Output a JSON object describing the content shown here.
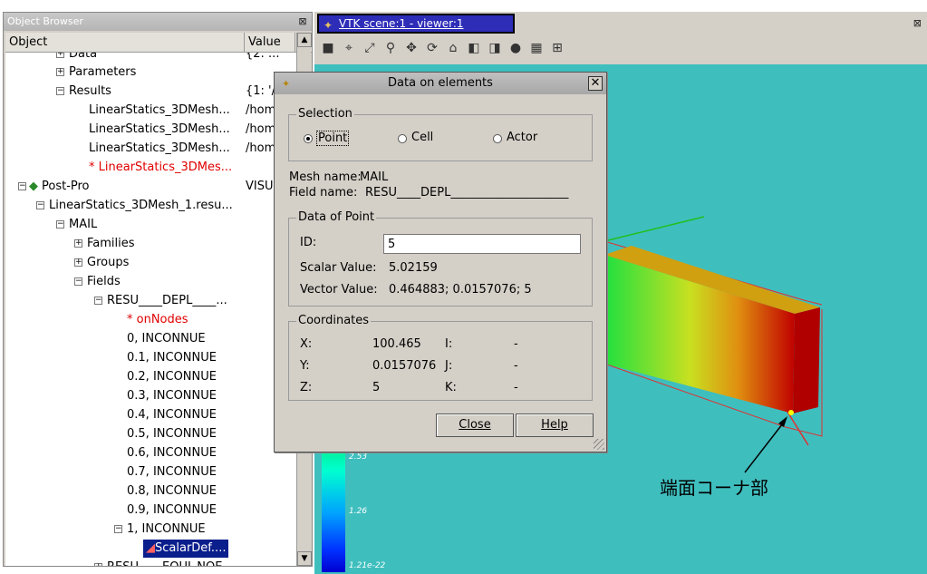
{
  "object_browser": {
    "title": "Object Browser",
    "col_object": "Object",
    "col_value": "Value",
    "rows": [
      {
        "label": "Data",
        "value": "{2: ..."
      },
      {
        "label": "Parameters",
        "value": ""
      },
      {
        "label": "Results",
        "value": "{1: '/"
      },
      {
        "label": "LinearStatics_3DMesh...",
        "value": "/hom."
      },
      {
        "label": "LinearStatics_3DMesh...",
        "value": "/hom."
      },
      {
        "label": "LinearStatics_3DMesh...",
        "value": "/hom."
      },
      {
        "label": "* LinearStatics_3DMes...",
        "value": ""
      },
      {
        "label": "Post-Pro",
        "value": "VISU"
      },
      {
        "label": "LinearStatics_3DMesh_1.resu...",
        "value": ""
      },
      {
        "label": "MAIL",
        "value": ""
      },
      {
        "label": "Families",
        "value": ""
      },
      {
        "label": "Groups",
        "value": ""
      },
      {
        "label": "Fields",
        "value": ""
      },
      {
        "label": "RESU____DEPL____...",
        "value": ""
      },
      {
        "label": "* onNodes",
        "value": ""
      },
      {
        "label": "0, INCONNUE",
        "value": ""
      },
      {
        "label": "0.1, INCONNUE",
        "value": ""
      },
      {
        "label": "0.2, INCONNUE",
        "value": ""
      },
      {
        "label": "0.3, INCONNUE",
        "value": ""
      },
      {
        "label": "0.4, INCONNUE",
        "value": ""
      },
      {
        "label": "0.5, INCONNUE",
        "value": ""
      },
      {
        "label": "0.6, INCONNUE",
        "value": ""
      },
      {
        "label": "0.7, INCONNUE",
        "value": ""
      },
      {
        "label": "0.8, INCONNUE",
        "value": ""
      },
      {
        "label": "0.9, INCONNUE",
        "value": ""
      },
      {
        "label": "1, INCONNUE",
        "value": ""
      },
      {
        "label": "ScalarDef....",
        "value": ""
      },
      {
        "label": "RESU____EQUI_NOE...",
        "value": ""
      }
    ]
  },
  "viewer": {
    "tab_title": "VTK scene:1 - viewer:1",
    "close_glyph": "⊠",
    "scalar_labels": [
      "2.53",
      "1.26",
      "1.21e-22"
    ]
  },
  "dialog": {
    "title": "Data on elements",
    "selection_title": "Selection",
    "radio_point": "Point",
    "radio_cell": "Cell",
    "radio_actor": "Actor",
    "mesh_name_label": "Mesh name:",
    "mesh_name": "MAIL",
    "field_name_label": "Field name:",
    "field_name": "RESU____DEPL____________________",
    "data_title": "Data of Point",
    "id_label": "ID:",
    "id_value": "5",
    "scalar_label": "Scalar Value:",
    "scalar_value": "5.02159",
    "vector_label": "Vector Value:",
    "vector_value": "0.464883; 0.0157076; 5",
    "coords_title": "Coordinates",
    "x_label": "X:",
    "x_value": "100.465",
    "y_label": "Y:",
    "y_value": "0.0157076",
    "z_label": "Z:",
    "z_value": "5",
    "i_label": "I:",
    "j_label": "J:",
    "k_label": "K:",
    "dash": "-",
    "close_button": "Close",
    "help_button": "Help"
  },
  "annotation": "端面コーナ部",
  "colors": {
    "viewer_bg": "#3fbebe",
    "selection": "#0a1e8c",
    "red_text": "#e00000"
  }
}
